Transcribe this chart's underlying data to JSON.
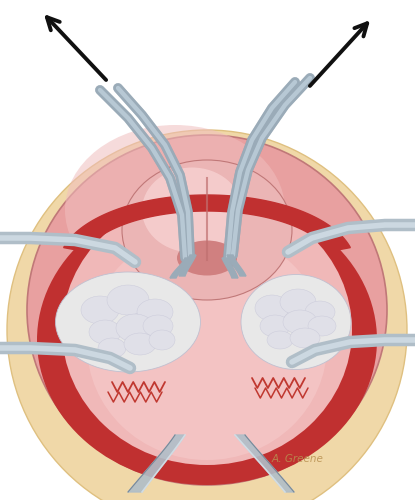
{
  "bg_color": "#ffffff",
  "body_bg_color": "#f0d8a8",
  "body_edge_color": "#dfc080",
  "uterus_color": "#e8a0a0",
  "uterus_edge": "#c07878",
  "uterus_light": "#f0bebe",
  "cup_red": "#c03030",
  "cup_dark": "#a02020",
  "fundus_pink": "#eeaaaa",
  "fundus_light": "#f8d0d0",
  "inner_pink": "#f0c0c0",
  "placenta_white": "#e8e8e8",
  "placenta_grey": "#d8d8e0",
  "placenta_edge": "#c0c0d0",
  "instrument_base": "#9aabb8",
  "instrument_light": "#c8d8e4",
  "instrument_dark": "#788898",
  "instrument_edge": "#606878",
  "retractor_fill": "#b0bec8",
  "retractor_light": "#d8e4ec",
  "suture_color": "#c03830",
  "arrow_color": "#101010",
  "sig_color": "#b89050",
  "sig_text": "A. Greene"
}
